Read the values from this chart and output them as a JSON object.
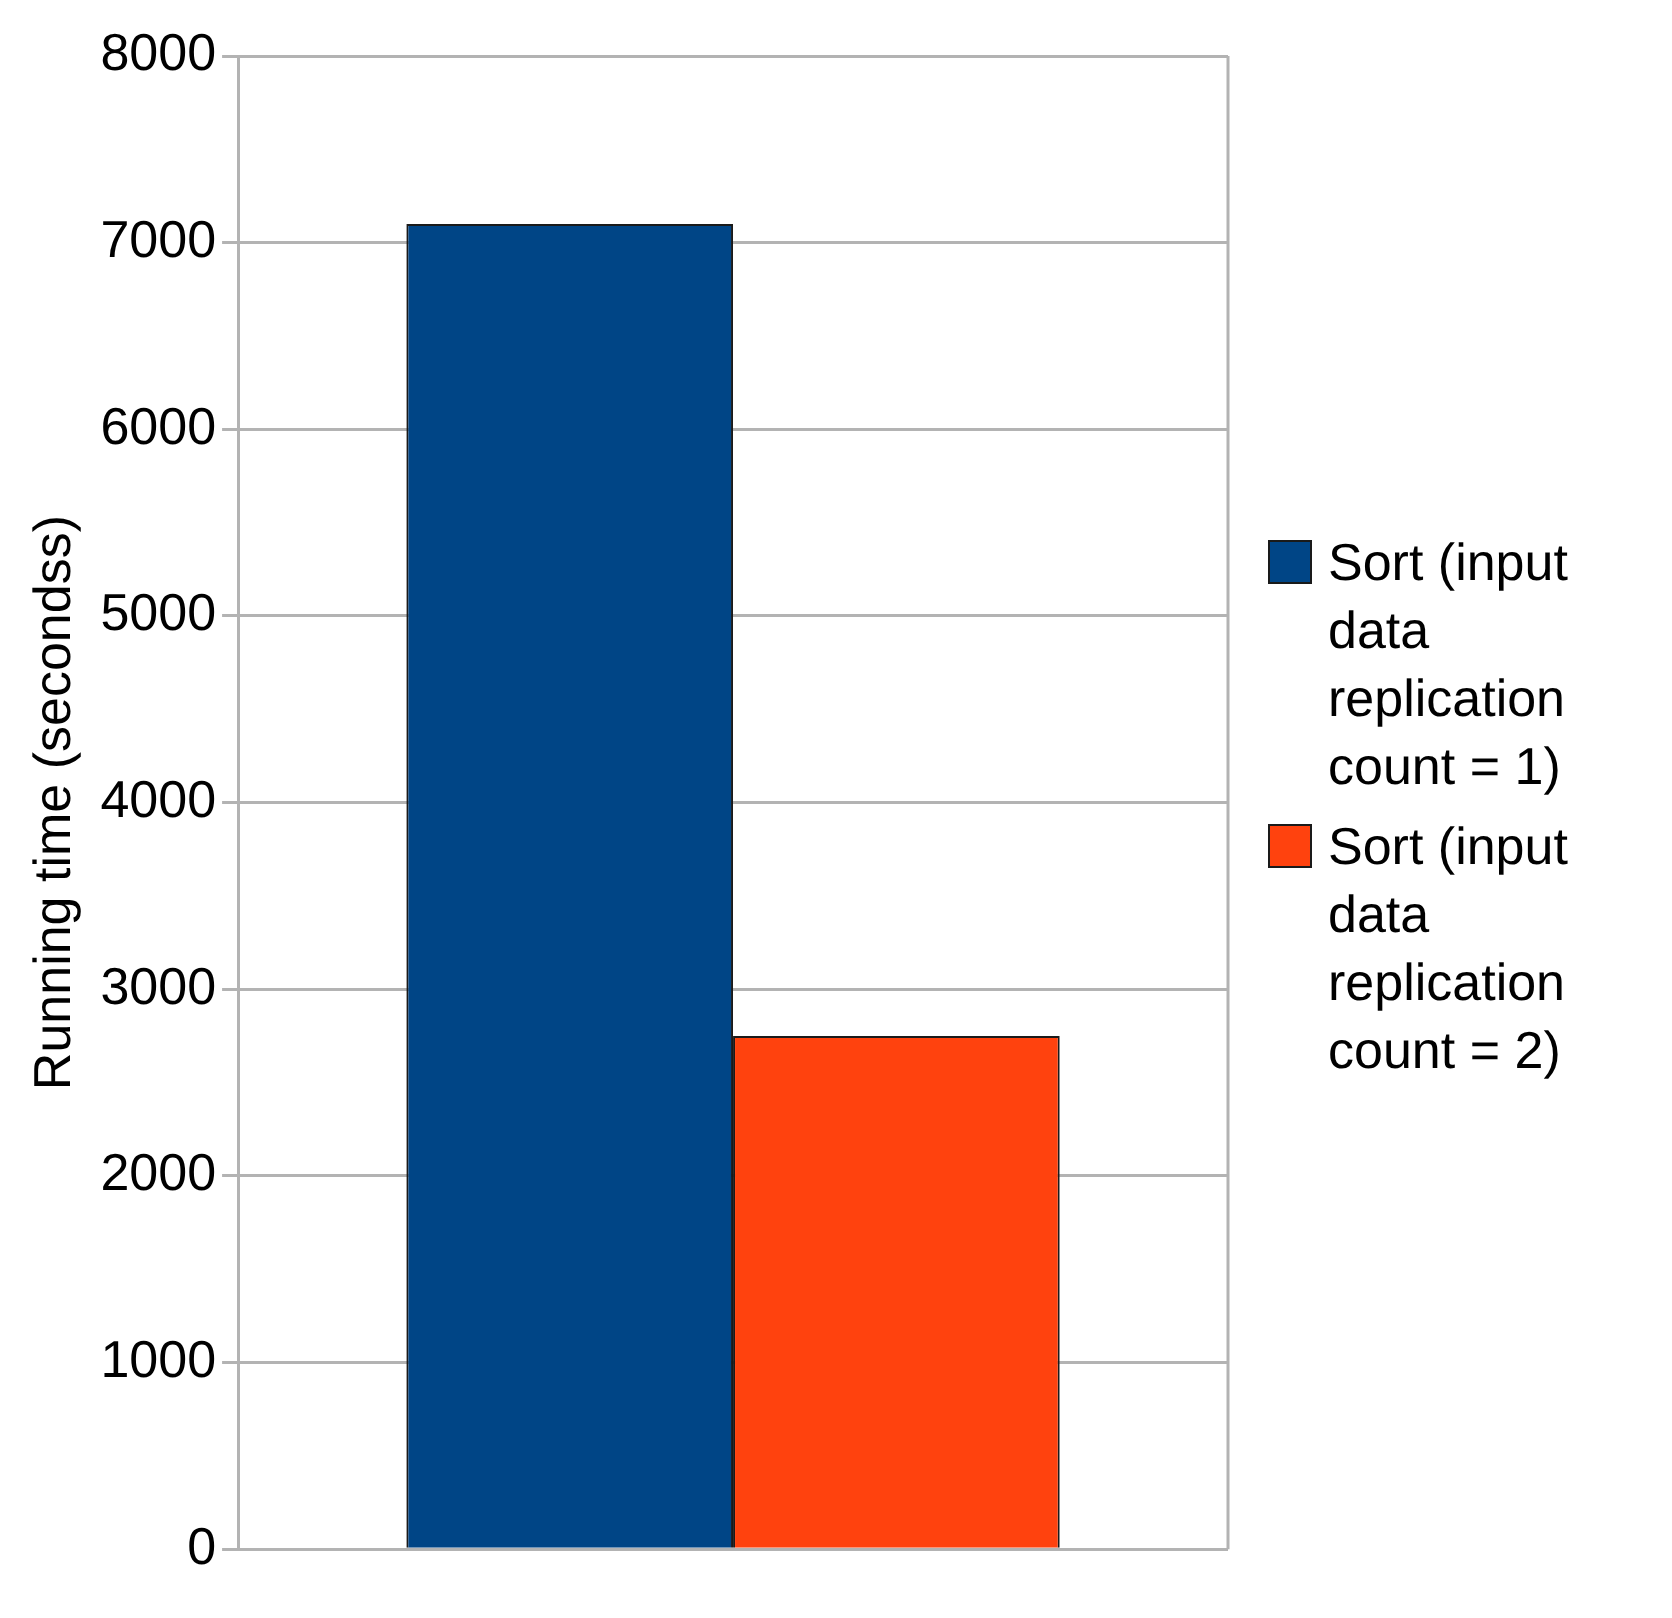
{
  "chart_data": {
    "type": "bar",
    "ylabel": "Running time (secondss)",
    "categories": [
      null
    ],
    "series": [
      {
        "name": "Sort (input data replication count = 1)",
        "color": "#004586",
        "values": [
          7100
        ]
      },
      {
        "name": "Sort (input data replication count = 2)",
        "color": "#ff420e",
        "values": [
          2750
        ]
      }
    ],
    "ylim": [
      0,
      8000
    ],
    "yticks": [
      0,
      1000,
      2000,
      3000,
      4000,
      5000,
      6000,
      7000,
      8000
    ],
    "grid": "y",
    "legend": "right"
  }
}
